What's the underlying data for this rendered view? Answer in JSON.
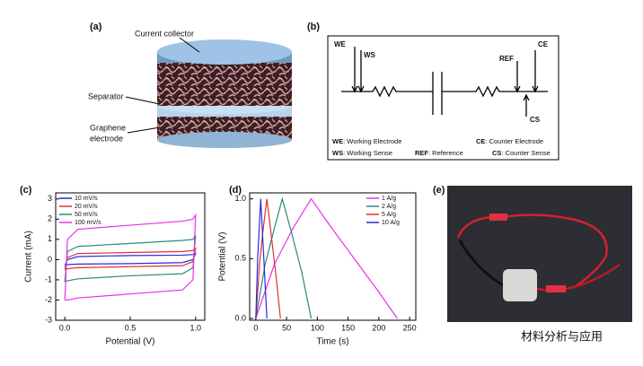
{
  "panels": {
    "a": {
      "label": "(a)",
      "current_collector": "Current collector",
      "separator": "Separator",
      "electrode": [
        "Graphene",
        "electrode"
      ]
    },
    "b": {
      "label": "(b)",
      "terminals": {
        "we": "WE",
        "ws": "WS",
        "ref": "REF",
        "ce": "CE",
        "cs": "CS"
      },
      "legend": [
        {
          "key": "WE",
          "text": ": Working Electrode"
        },
        {
          "key": "CE",
          "text": ": Counter Electrode"
        },
        {
          "key": "WS",
          "text": ": Working Sense"
        },
        {
          "key": "REF",
          "text": ": Reference"
        },
        {
          "key": "CS",
          "text": ": Counter Sense"
        }
      ]
    },
    "e": {
      "label": "(e)"
    }
  },
  "watermark": "材料分析与应用",
  "chart_data": [
    {
      "type": "line",
      "label": "(c)",
      "x_label": "Potential (V)",
      "y_label": "Current (mA)",
      "x": [
        0,
        0.02,
        0.1,
        0.5,
        0.9,
        0.98,
        1.0,
        0.98,
        0.9,
        0.5,
        0.1,
        0.02,
        0
      ],
      "series": [
        {
          "name": "10 mV/s",
          "color": "#2b2bd6",
          "values": [
            -0.3,
            0.0,
            0.15,
            0.2,
            0.22,
            0.25,
            0.3,
            0.0,
            -0.15,
            -0.2,
            -0.22,
            -0.25,
            -0.3
          ]
        },
        {
          "name": "20 mV/s",
          "color": "#e03030",
          "values": [
            -0.5,
            0.1,
            0.3,
            0.35,
            0.4,
            0.45,
            0.55,
            -0.1,
            -0.3,
            -0.35,
            -0.4,
            -0.45,
            -0.5
          ]
        },
        {
          "name": "50 mV/s",
          "color": "#2a8a7a",
          "values": [
            -1.1,
            0.4,
            0.65,
            0.8,
            0.95,
            1.0,
            1.2,
            -0.4,
            -0.7,
            -0.8,
            -0.95,
            -1.05,
            -1.1
          ]
        },
        {
          "name": "100 mV/s",
          "color": "#e830e8",
          "values": [
            -2.0,
            1.0,
            1.5,
            1.7,
            1.9,
            2.0,
            2.2,
            -1.0,
            -1.5,
            -1.7,
            -1.9,
            -2.0,
            -2.0
          ]
        }
      ],
      "xlim": [
        -0.07,
        1.07
      ],
      "ylim": [
        -3,
        3.3
      ],
      "xticks": [
        {
          "value": 0,
          "label": "0.0"
        },
        0.5,
        {
          "value": 1,
          "label": "1.0"
        }
      ],
      "yticks": [
        -3,
        -2,
        -1,
        0,
        1,
        2,
        3
      ],
      "legend": "upper-left"
    },
    {
      "type": "line",
      "label": "(d)",
      "x_label": "Time (s)",
      "y_label": "Potential (V)",
      "series": [
        {
          "name": "1 A/g",
          "color": "#e830e8",
          "x": [
            0,
            30,
            60,
            90,
            120,
            160,
            200,
            230
          ],
          "values": [
            0,
            0.45,
            0.75,
            1.0,
            0.78,
            0.5,
            0.22,
            0
          ]
        },
        {
          "name": "2 A/g",
          "color": "#2a8a7a",
          "x": [
            0,
            15,
            30,
            43,
            58,
            75,
            90
          ],
          "values": [
            0,
            0.45,
            0.75,
            1.0,
            0.72,
            0.38,
            0
          ]
        },
        {
          "name": "5 A/g",
          "color": "#e03030",
          "x": [
            0,
            6,
            12,
            18,
            25,
            33,
            40
          ],
          "values": [
            0,
            0.45,
            0.75,
            1.0,
            0.7,
            0.35,
            0
          ]
        },
        {
          "name": "10 A/g",
          "color": "#2b2bd6",
          "x": [
            0,
            3,
            8,
            13,
            18
          ],
          "values": [
            0,
            0.5,
            1.0,
            0.5,
            0
          ]
        }
      ],
      "xlim": [
        -10,
        260
      ],
      "ylim": [
        -0.015,
        1.05
      ],
      "xticks": [
        0,
        50,
        100,
        150,
        200,
        250
      ],
      "yticks": [
        {
          "value": 0,
          "label": "0.0"
        },
        0.5,
        {
          "value": 1,
          "label": "1.0"
        }
      ],
      "legend": "upper-right"
    }
  ]
}
